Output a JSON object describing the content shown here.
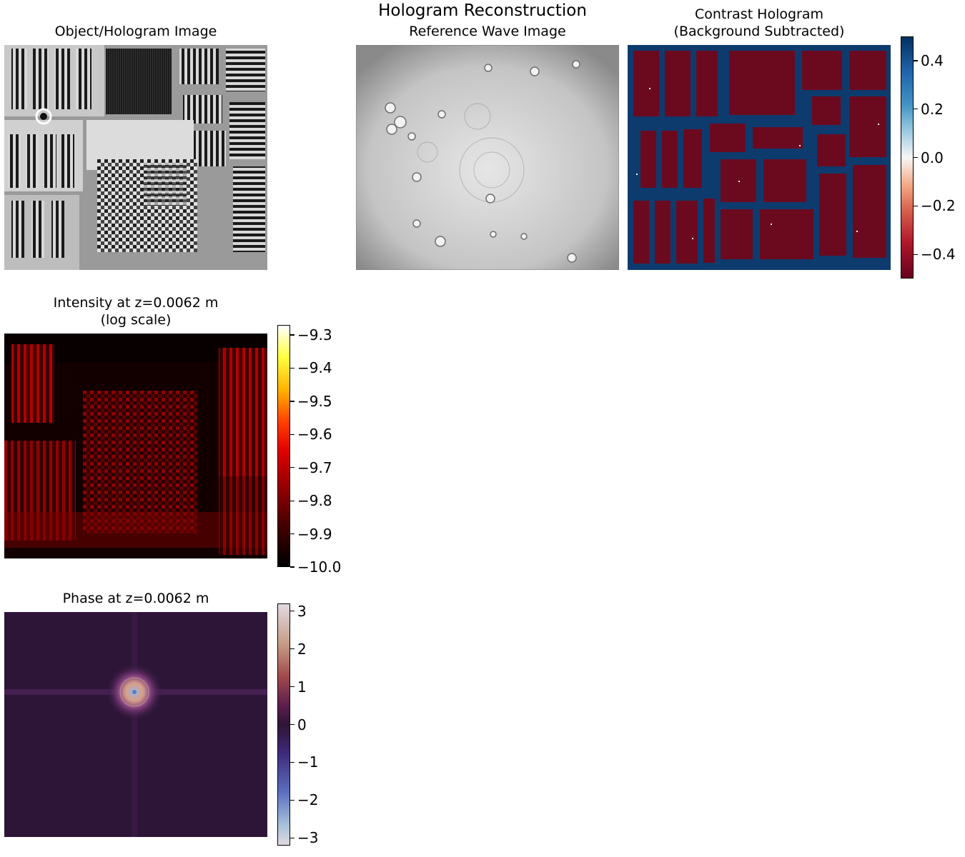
{
  "figure": {
    "title": "Hologram Reconstruction"
  },
  "panels": {
    "object": {
      "title": "Object/Hologram Image"
    },
    "reference": {
      "title": "Reference Wave Image"
    },
    "contrast": {
      "title": "Contrast Hologram\n(Background Subtracted)"
    },
    "intensity": {
      "title": "Intensity at z=0.0062 m\n(log scale)"
    },
    "phase": {
      "title": "Phase at z=0.0062 m"
    }
  },
  "colors": {
    "rdbu_red": "#6b0a1f",
    "rdbu_blue": "#0d3b6e",
    "twilight_dark": "#2d1538",
    "hot_dark": "#000000",
    "hot_red": "#e60000"
  },
  "chart_data": [
    {
      "type": "heatmap",
      "title": "Object/Hologram Image",
      "colormap": "gray",
      "axes": "off"
    },
    {
      "type": "heatmap",
      "title": "Reference Wave Image",
      "colormap": "gray",
      "axes": "off"
    },
    {
      "type": "heatmap",
      "title": "Contrast Hologram (Background Subtracted)",
      "colormap": "RdBu",
      "colorbar": {
        "range": [
          -0.5,
          0.5
        ],
        "ticks": [
          "0.4",
          "0.2",
          "0.0",
          "−0.2",
          "−0.4"
        ],
        "tick_values": [
          0.4,
          0.2,
          0.0,
          -0.2,
          -0.4
        ]
      }
    },
    {
      "type": "heatmap",
      "title": "Intensity at z=0.0062 m (log scale)",
      "colormap": "hot",
      "colorbar": {
        "range": [
          -10.0,
          -9.27
        ],
        "ticks": [
          "−9.3",
          "−9.4",
          "−9.5",
          "−9.6",
          "−9.7",
          "−9.8",
          "−9.9",
          "−10.0"
        ],
        "tick_values": [
          -9.3,
          -9.4,
          -9.5,
          -9.6,
          -9.7,
          -9.8,
          -9.9,
          -10.0
        ]
      }
    },
    {
      "type": "heatmap",
      "title": "Phase at z=0.0062 m",
      "colormap": "twilight",
      "colorbar": {
        "range": [
          -3.2,
          3.2
        ],
        "ticks": [
          "3",
          "2",
          "1",
          "0",
          "−1",
          "−2",
          "−3"
        ],
        "tick_values": [
          3,
          2,
          1,
          0,
          -1,
          -2,
          -3
        ]
      }
    }
  ]
}
